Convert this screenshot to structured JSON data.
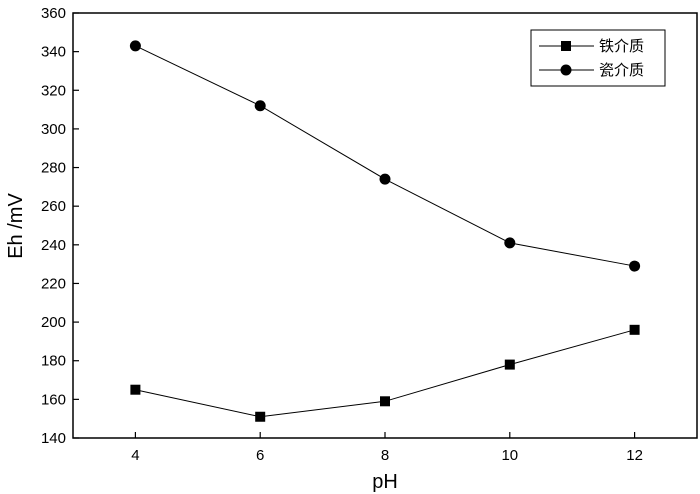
{
  "chart_data": {
    "type": "line",
    "xlabel": "pH",
    "ylabel": "Eh /mV",
    "x": [
      4,
      6,
      8,
      10,
      12
    ],
    "xlim": [
      3,
      13
    ],
    "ylim": [
      140,
      360
    ],
    "xticks": [
      4,
      6,
      8,
      10,
      12
    ],
    "yticks": [
      140,
      160,
      180,
      200,
      220,
      240,
      260,
      280,
      300,
      320,
      340,
      360
    ],
    "grid": false,
    "legend_position": "top-right",
    "series": [
      {
        "name": "铁介质",
        "marker": "square",
        "color": "#000000",
        "values": [
          165,
          151,
          159,
          178,
          196
        ]
      },
      {
        "name": "瓷介质",
        "marker": "circle",
        "color": "#000000",
        "values": [
          343,
          312,
          274,
          241,
          229
        ]
      }
    ]
  }
}
